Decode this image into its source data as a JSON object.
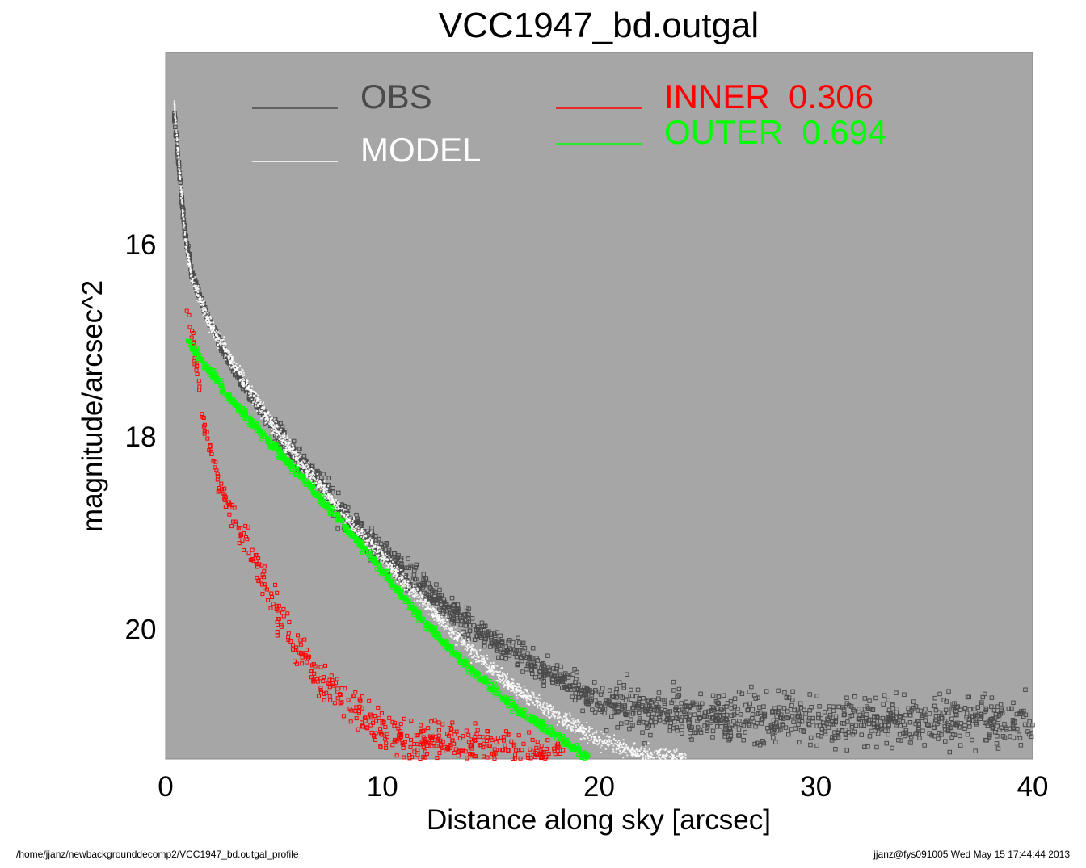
{
  "chart_data": {
    "type": "scatter",
    "title": "VCC1947_bd.outgal",
    "xlabel": "Distance along sky [arcsec]",
    "ylabel": "magnitude/arcsec^2",
    "xlim": [
      0,
      40
    ],
    "ylim": [
      14.0,
      21.35
    ],
    "y_inverted": true,
    "x_ticks": [
      0,
      10,
      20,
      30,
      40
    ],
    "y_ticks": [
      16,
      18,
      20
    ],
    "x_tick_labels": [
      "0",
      "10",
      "20",
      "30",
      "40"
    ],
    "y_tick_labels": [
      "16",
      "18",
      "20"
    ],
    "background": "#a6a6a6",
    "grid": false,
    "legend": {
      "placement": "top",
      "entries": [
        {
          "label": "OBS",
          "color": "#4a4a4a"
        },
        {
          "label": "MODEL",
          "color": "#ffffff"
        },
        {
          "label": "INNER  0.306",
          "color": "#ff0000"
        },
        {
          "label": "OUTER  0.694",
          "color": "#00ff00"
        }
      ]
    },
    "series": [
      {
        "name": "OBS",
        "color": "#4a4a4a",
        "marker": "open-square",
        "points": [
          [
            0.4,
            14.65
          ],
          [
            0.9,
            15.9
          ],
          [
            1.2,
            16.3
          ],
          [
            2,
            16.8
          ],
          [
            3,
            17.25
          ],
          [
            4,
            17.6
          ],
          [
            5,
            17.9
          ],
          [
            6,
            18.2
          ],
          [
            7,
            18.45
          ],
          [
            8,
            18.75
          ],
          [
            10,
            19.2
          ],
          [
            12,
            19.6
          ],
          [
            14,
            19.95
          ],
          [
            16,
            20.25
          ],
          [
            18,
            20.5
          ],
          [
            20,
            20.75
          ],
          [
            22,
            20.85
          ],
          [
            25,
            20.9
          ],
          [
            28,
            20.95
          ],
          [
            30,
            20.95
          ],
          [
            33,
            20.95
          ],
          [
            36,
            20.95
          ],
          [
            40,
            20.95
          ]
        ]
      },
      {
        "name": "MODEL",
        "color": "#ffffff",
        "marker": "dot",
        "points": [
          [
            0.4,
            14.55
          ],
          [
            0.9,
            15.95
          ],
          [
            1.2,
            16.35
          ],
          [
            2,
            16.8
          ],
          [
            3,
            17.2
          ],
          [
            4,
            17.55
          ],
          [
            5,
            17.9
          ],
          [
            6,
            18.2
          ],
          [
            8,
            18.75
          ],
          [
            10,
            19.25
          ],
          [
            12,
            19.75
          ],
          [
            14,
            20.2
          ],
          [
            16,
            20.6
          ],
          [
            18,
            20.9
          ],
          [
            20,
            21.15
          ],
          [
            22,
            21.3
          ],
          [
            24,
            21.35
          ]
        ]
      },
      {
        "name": "INNER",
        "color": "#ff0000",
        "marker": "open-square",
        "points": [
          [
            0.9,
            16.5
          ],
          [
            1.2,
            16.9
          ],
          [
            1.8,
            17.9
          ],
          [
            2.5,
            18.5
          ],
          [
            3.5,
            19.0
          ],
          [
            4.5,
            19.5
          ],
          [
            5.5,
            20.0
          ],
          [
            7,
            20.5
          ],
          [
            8.5,
            20.8
          ],
          [
            10,
            21.05
          ],
          [
            11.5,
            21.2
          ],
          [
            13,
            21.2
          ],
          [
            15,
            21.25
          ],
          [
            17,
            21.3
          ],
          [
            18.5,
            21.35
          ]
        ]
      },
      {
        "name": "OUTER",
        "color": "#00ff00",
        "marker": "open-square",
        "points": [
          [
            1,
            17.0
          ],
          [
            2,
            17.3
          ],
          [
            3,
            17.6
          ],
          [
            4,
            17.85
          ],
          [
            5,
            18.1
          ],
          [
            6,
            18.35
          ],
          [
            7,
            18.6
          ],
          [
            8,
            18.85
          ],
          [
            10,
            19.4
          ],
          [
            12,
            19.95
          ],
          [
            14,
            20.4
          ],
          [
            16,
            20.8
          ],
          [
            18,
            21.1
          ],
          [
            19.5,
            21.35
          ]
        ]
      }
    ]
  },
  "footer": {
    "path": "/home/jjanz/newbackgrounddecomp2/VCC1947_bd.outgal_profile",
    "stamp": "jjanz@fys091005  Wed May 15 17:44:44 2013"
  }
}
